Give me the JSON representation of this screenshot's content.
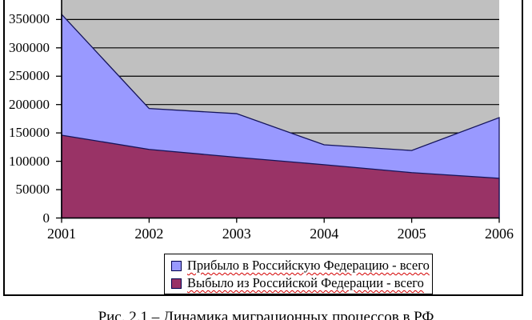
{
  "caption": "Рис. 2.1 – Динамика миграционных процессов в РФ",
  "axis": {
    "x_labels": [
      "2001",
      "2002",
      "2003",
      "2004",
      "2005",
      "2006"
    ],
    "y_labels": [
      "350000",
      "300000",
      "250000",
      "200000",
      "150000",
      "100000",
      "50000",
      "0"
    ]
  },
  "legend": {
    "arrived_label": "Прибыло в Российскую Федерацию - всего",
    "departed_label": "Выбыло из Российской Федерации - всего",
    "squiggle_color": "#D40000"
  },
  "colors": {
    "plot_background": "#C0C0C0",
    "arrived_fill": "#9999FF",
    "departed_fill": "#993366",
    "series_border": "#14145A",
    "axis_and_grid": "#000000",
    "page_background": "#FFFFFF"
  },
  "chart_data": {
    "type": "area",
    "overlapping": true,
    "categories": [
      2001,
      2002,
      2003,
      2004,
      2005,
      2006
    ],
    "series": [
      {
        "name": "Прибыло в Российскую Федерацию - всего",
        "color": "#9999FF",
        "values": [
          359000,
          193000,
          184000,
          129000,
          119000,
          177000
        ]
      },
      {
        "name": "Выбыло из Российской Федерации - всего",
        "color": "#993366",
        "values": [
          146000,
          121000,
          107000,
          94000,
          80000,
          70000
        ]
      }
    ],
    "title": "",
    "xlabel": "",
    "ylabel": "",
    "ylim": [
      0,
      400000
    ],
    "yticks": [
      0,
      50000,
      100000,
      150000,
      200000,
      250000,
      300000,
      350000
    ],
    "grid": true,
    "plot_bg": "#C0C0C0",
    "line_color": "#14145A",
    "legend_position": "bottom",
    "note": "top of chart and bottom of caption are cropped in the screenshot"
  }
}
